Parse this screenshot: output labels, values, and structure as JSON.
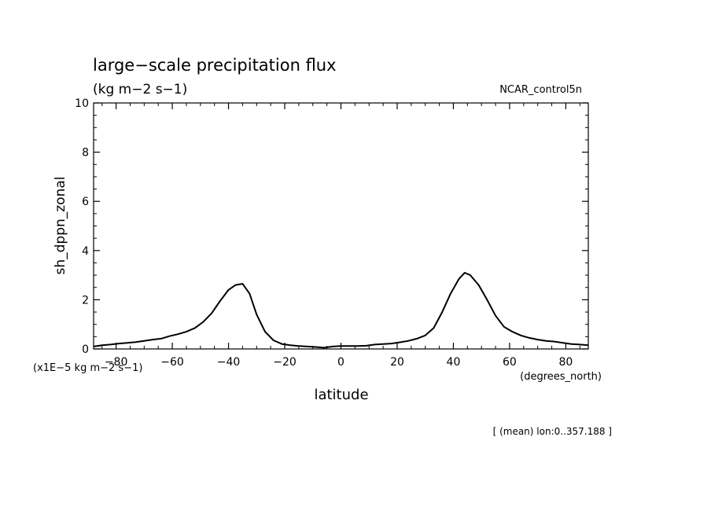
{
  "chart_data": {
    "type": "line",
    "title": "large−scale precipitation flux",
    "subtitle": "(kg m−2 s−1)",
    "dataset_label": "NCAR_control5n",
    "xlabel": "latitude",
    "x_units": "(degrees_north)",
    "ylabel": "sh_dppn_zonal",
    "y_units": "(x1E−5 kg m−2 s−1)",
    "footer_note": "[ (mean) lon:0..357.188 ]",
    "xlim": [
      -88,
      88
    ],
    "ylim": [
      0,
      10
    ],
    "x_ticks": [
      -80,
      -60,
      -40,
      -20,
      0,
      20,
      40,
      60,
      80
    ],
    "x_tick_labels": [
      "−80",
      "−60",
      "−40",
      "−20",
      "0",
      "20",
      "40",
      "60",
      "80"
    ],
    "y_ticks": [
      0,
      2,
      4,
      6,
      8,
      10
    ],
    "y_tick_labels": [
      "0",
      "2",
      "4",
      "6",
      "8",
      "10"
    ],
    "grid": false,
    "series": [
      {
        "x": [
          -88,
          -85,
          -82,
          -79,
          -76,
          -73,
          -70,
          -67,
          -64,
          -61,
          -58,
          -55,
          -52,
          -49,
          -46,
          -43,
          -40,
          -37.5,
          -35,
          -32.5,
          -30,
          -27,
          -24,
          -21,
          -18,
          -15,
          -12,
          -9,
          -6,
          -3,
          0,
          3,
          6,
          9,
          12,
          15,
          18,
          21,
          24,
          27,
          30,
          33,
          36,
          39,
          42,
          44,
          46,
          49,
          52,
          55,
          58,
          61,
          64,
          67,
          70,
          73,
          76,
          79,
          82,
          85,
          88
        ],
        "y": [
          0.1,
          0.15,
          0.18,
          0.22,
          0.25,
          0.28,
          0.33,
          0.38,
          0.42,
          0.52,
          0.6,
          0.7,
          0.85,
          1.1,
          1.45,
          1.95,
          2.4,
          2.6,
          2.65,
          2.25,
          1.4,
          0.7,
          0.35,
          0.2,
          0.15,
          0.12,
          0.1,
          0.08,
          0.05,
          0.1,
          0.12,
          0.12,
          0.12,
          0.13,
          0.18,
          0.2,
          0.22,
          0.27,
          0.33,
          0.42,
          0.55,
          0.85,
          1.5,
          2.25,
          2.85,
          3.1,
          3.0,
          2.6,
          2.0,
          1.35,
          0.9,
          0.7,
          0.55,
          0.45,
          0.38,
          0.33,
          0.3,
          0.25,
          0.2,
          0.18,
          0.15
        ]
      }
    ]
  }
}
